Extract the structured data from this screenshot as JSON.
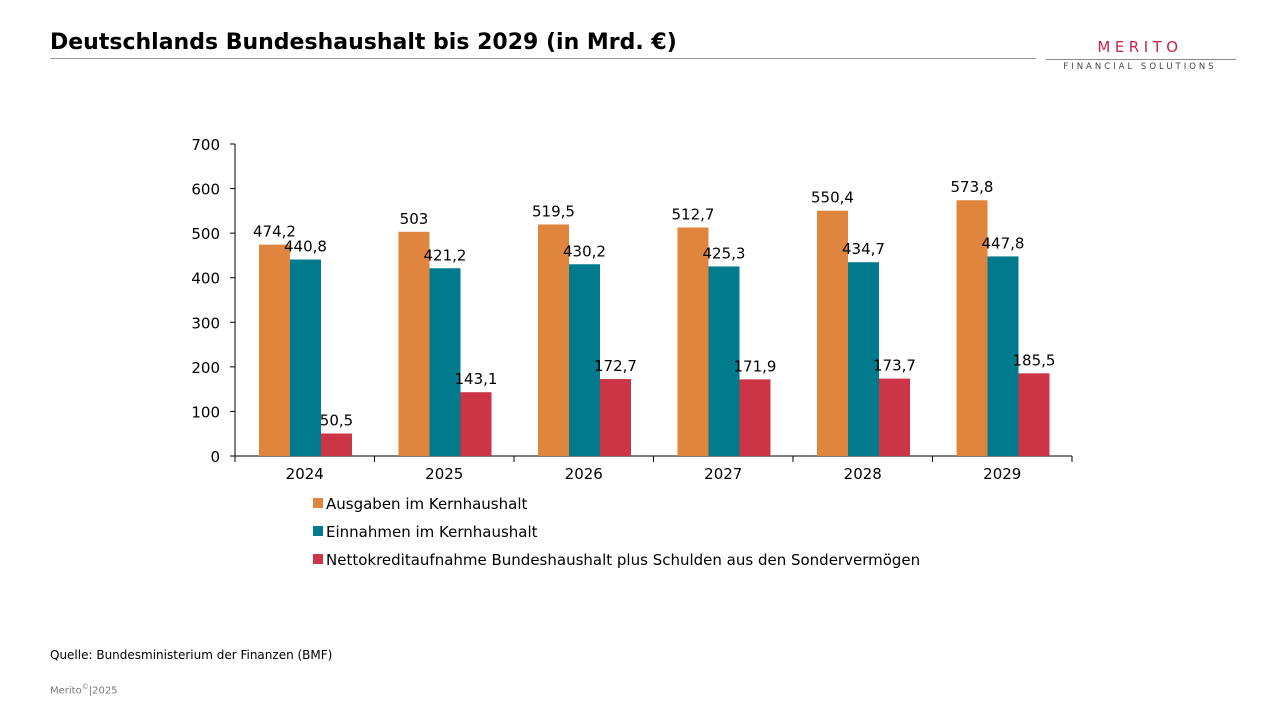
{
  "page": {
    "title": "Deutschlands Bundeshaushalt bis 2029 (in Mrd. €)",
    "source": "Quelle: Bundesministerium der Finanzen (BMF)",
    "footer_brand": "Merito",
    "footer_mark": "©",
    "footer_year": "|2025"
  },
  "logo": {
    "name": "MERITO",
    "subtitle": "FINANCIAL SOLUTIONS",
    "color": "#c8254a"
  },
  "chart_data": {
    "type": "bar",
    "title": "",
    "xlabel": "",
    "ylabel": "",
    "ylim": [
      0,
      700
    ],
    "yticks": [
      0,
      100,
      200,
      300,
      400,
      500,
      600,
      700
    ],
    "grid": false,
    "legend_position": "bottom",
    "categories": [
      "2024",
      "2025",
      "2026",
      "2027",
      "2028",
      "2029"
    ],
    "series": [
      {
        "name": "Ausgaben im Kernhaushalt",
        "color": "#e0853d",
        "values": [
          474.2,
          503,
          519.5,
          512.7,
          550.4,
          573.8
        ],
        "labels": [
          "474,2",
          "503",
          "519,5",
          "512,7",
          "550,4",
          "573,8"
        ]
      },
      {
        "name": "Einnahmen im Kernhaushalt",
        "color": "#007a8c",
        "values": [
          440.8,
          421.2,
          430.2,
          425.3,
          434.7,
          447.8
        ],
        "labels": [
          "440,8",
          "421,2",
          "430,2",
          "425,3",
          "434,7",
          "447,8"
        ]
      },
      {
        "name": "Nettokreditaufnahme Bundeshaushalt plus Schulden aus den Sondervermögen",
        "color": "#cc3545",
        "values": [
          50.5,
          143.1,
          172.7,
          171.9,
          173.7,
          185.5
        ],
        "labels": [
          "50,5",
          "143,1",
          "172,7",
          "171,9",
          "173,7",
          "185,5"
        ]
      }
    ]
  }
}
